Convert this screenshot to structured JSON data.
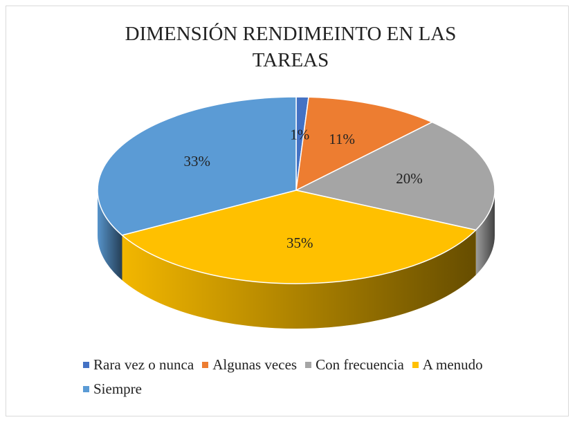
{
  "chart_data": {
    "type": "pie3d",
    "title": "DIMENSIÓN RENDIMEINTO EN LAS TAREAS",
    "categories": [
      "Rara vez o nunca",
      "Algunas veces",
      "Con frecuencia",
      "A menudo",
      "Siempre"
    ],
    "values": [
      1,
      11,
      20,
      35,
      33
    ],
    "value_labels": [
      "1%",
      "11%",
      "20%",
      "35%",
      "33%"
    ],
    "colors": [
      "#4472c4",
      "#ed7d31",
      "#a5a5a5",
      "#ffc000",
      "#5b9bd5"
    ],
    "legend": "bottom"
  }
}
